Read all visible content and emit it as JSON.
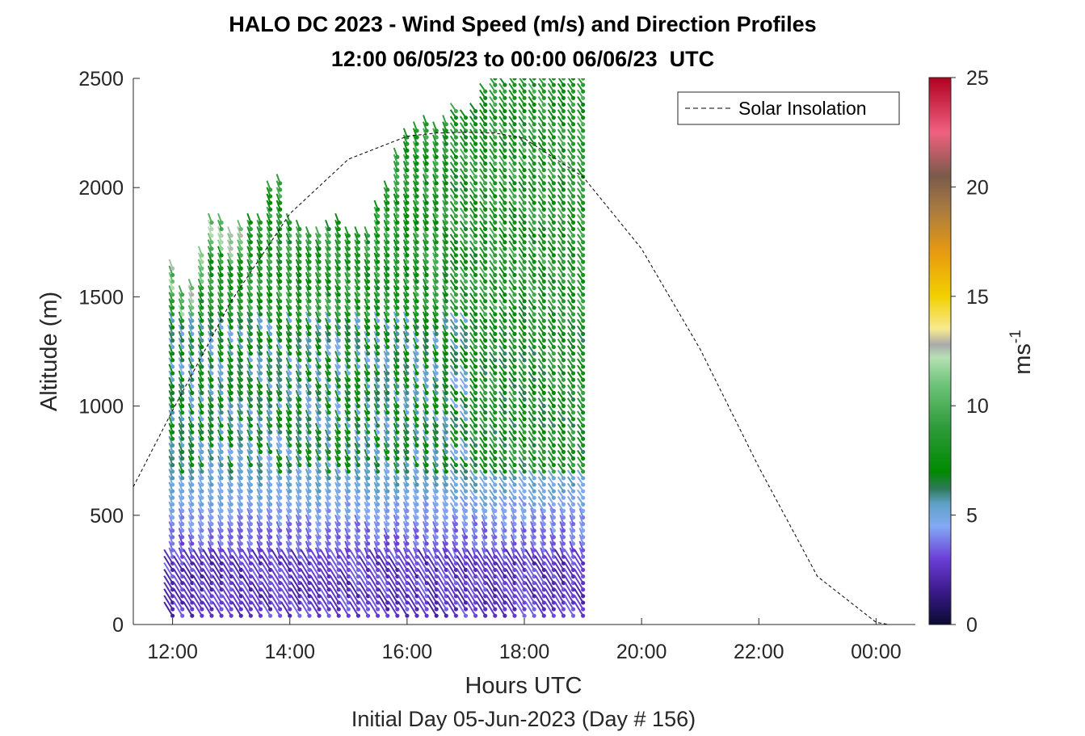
{
  "chart_data": {
    "type": "scatter",
    "title": "HALO DC 2023 - Wind Speed (m/s) and Direction Profiles",
    "subtitle": "12:00 06/05/23 to 00:00 06/06/23  UTC",
    "xlabel": "Hours UTC",
    "footer": "Initial Day 05-Jun-2023 (Day # 156)",
    "ylabel": "Altitude (m)",
    "xlim": [
      11.33,
      24.67
    ],
    "ylim": [
      0,
      2500
    ],
    "x_ticks": [
      {
        "value": 12,
        "label": "12:00"
      },
      {
        "value": 14,
        "label": "14:00"
      },
      {
        "value": 16,
        "label": "16:00"
      },
      {
        "value": 18,
        "label": "18:00"
      },
      {
        "value": 20,
        "label": "20:00"
      },
      {
        "value": 22,
        "label": "22:00"
      },
      {
        "value": 24,
        "label": "00:00"
      }
    ],
    "y_ticks": [
      {
        "value": 0,
        "label": "0"
      },
      {
        "value": 500,
        "label": "500"
      },
      {
        "value": 1000,
        "label": "1000"
      },
      {
        "value": 1500,
        "label": "1500"
      },
      {
        "value": 2000,
        "label": "2000"
      },
      {
        "value": 2500,
        "label": "2500"
      }
    ],
    "colorbar": {
      "label": "ms",
      "label_exponent": "-1",
      "range": [
        0,
        25
      ],
      "ticks": [
        {
          "value": 0,
          "label": "0"
        },
        {
          "value": 5,
          "label": "5"
        },
        {
          "value": 10,
          "label": "10"
        },
        {
          "value": 15,
          "label": "15"
        },
        {
          "value": 20,
          "label": "20"
        },
        {
          "value": 25,
          "label": "25"
        }
      ],
      "stops": [
        {
          "v": 0,
          "c": "#0a0a30"
        },
        {
          "v": 1.5,
          "c": "#3a1a8a"
        },
        {
          "v": 3,
          "c": "#6a3ed8"
        },
        {
          "v": 4.5,
          "c": "#84aaf4"
        },
        {
          "v": 5.5,
          "c": "#5fa2c8"
        },
        {
          "v": 6.2,
          "c": "#2e7a5a"
        },
        {
          "v": 7,
          "c": "#008a00"
        },
        {
          "v": 9,
          "c": "#2e9a3a"
        },
        {
          "v": 11,
          "c": "#6ec47a"
        },
        {
          "v": 12.2,
          "c": "#b6e0b4"
        },
        {
          "v": 12.8,
          "c": "#aaaaaa"
        },
        {
          "v": 13.5,
          "c": "#f6ea90"
        },
        {
          "v": 15,
          "c": "#f2d000"
        },
        {
          "v": 17,
          "c": "#e89a10"
        },
        {
          "v": 19,
          "c": "#a87a40"
        },
        {
          "v": 20.5,
          "c": "#7a5a4a"
        },
        {
          "v": 22.5,
          "c": "#f06080"
        },
        {
          "v": 25,
          "c": "#b00020"
        }
      ]
    },
    "series": [
      {
        "name": "Solar Insolation",
        "style": "dashed",
        "color": "#000000",
        "x": [
          11.33,
          12.0,
          13.0,
          14.0,
          15.0,
          16.0,
          16.5,
          17.0,
          17.5,
          18.0,
          19.0,
          20.0,
          21.0,
          22.0,
          23.0,
          24.0,
          24.22,
          24.67
        ],
        "y": [
          630,
          980,
          1480,
          1880,
          2130,
          2235,
          2250,
          2253,
          2250,
          2225,
          2050,
          1720,
          1260,
          720,
          220,
          10,
          0,
          0
        ]
      }
    ],
    "wind_profiles": {
      "start_hour": 12.0,
      "interval_hours": 0.1667,
      "count": 43,
      "altitude_step_m": 30,
      "top_altitude_m": [
        1650,
        1520,
        1560,
        1700,
        1850,
        1850,
        1780,
        1830,
        1840,
        1860,
        1990,
        2040,
        1850,
        1810,
        1800,
        1790,
        1830,
        1860,
        1800,
        1780,
        1800,
        1900,
        2000,
        2150,
        2250,
        2270,
        2300,
        2260,
        2300,
        2350,
        2320,
        2360,
        2450,
        2500,
        2480,
        2500,
        2500,
        2500,
        2500,
        2500,
        2500,
        2500,
        2500
      ]
    }
  }
}
